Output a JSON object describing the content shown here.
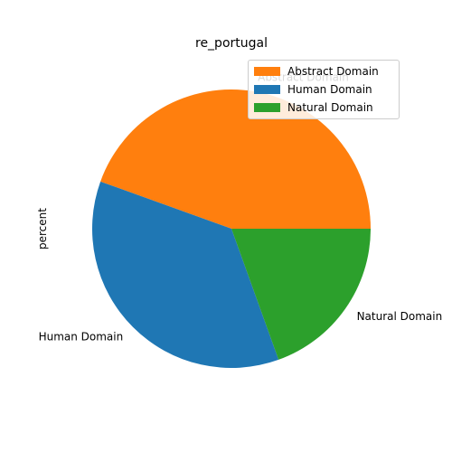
{
  "chart_data": {
    "type": "pie",
    "title": "re_portugal",
    "ylabel": "percent",
    "categories": [
      "Abstract Domain",
      "Human Domain",
      "Natural Domain"
    ],
    "values": [
      44.5,
      36.0,
      19.5
    ],
    "colors": [
      "#ff7f0e",
      "#1f77b4",
      "#2ca02c"
    ],
    "start_angle_deg": 0,
    "direction": "counterclockwise",
    "legend_placement": "upper right"
  }
}
